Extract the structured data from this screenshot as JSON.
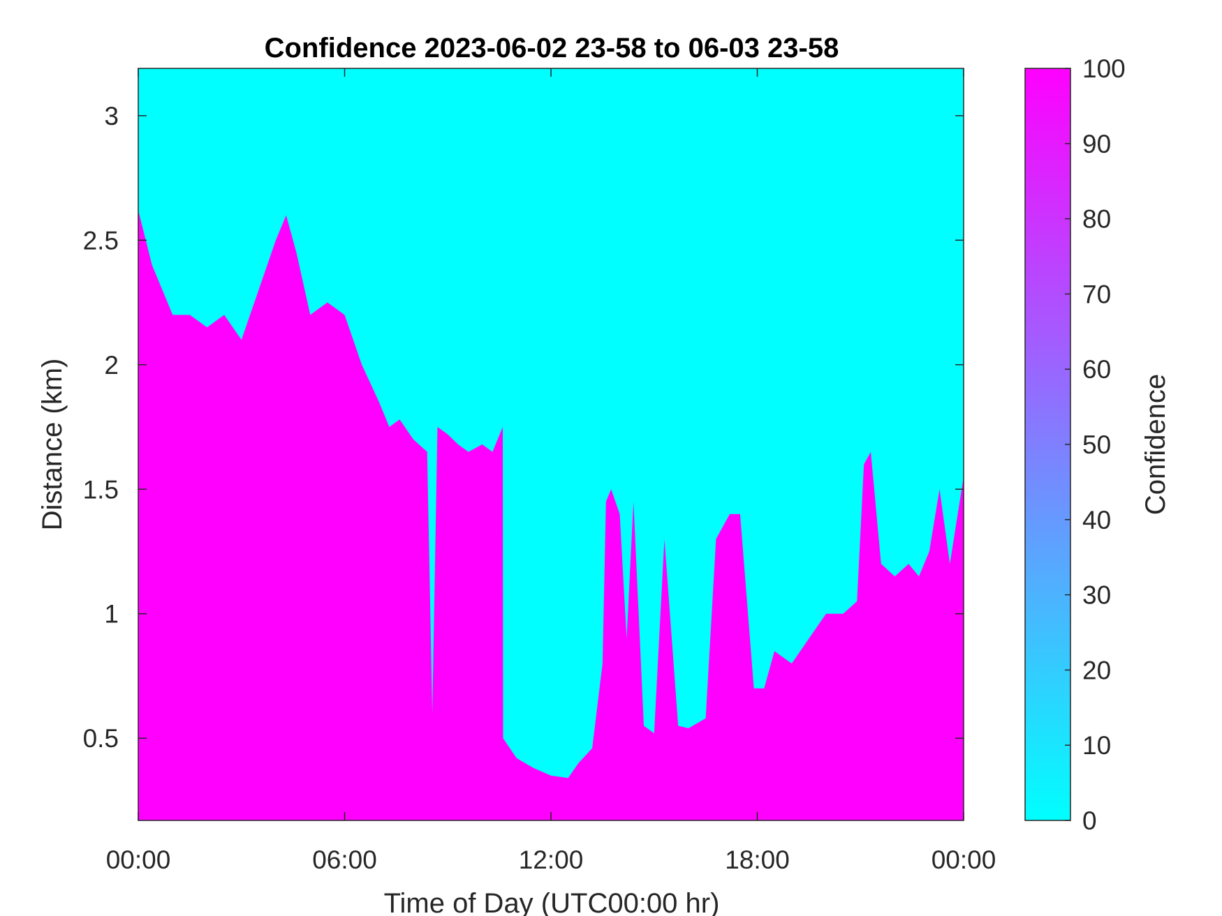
{
  "chart_data": {
    "type": "heatmap",
    "title": "Confidence 2023-06-02 23-58 to 06-03 23-58",
    "xlabel": "Time of Day (UTC00:00 hr)",
    "ylabel": "Distance (km)",
    "colorbar_label": "Confidence",
    "x_ticks": [
      "00:00",
      "06:00",
      "12:00",
      "18:00",
      "00:00"
    ],
    "x_tick_hours": [
      0,
      6,
      12,
      18,
      24
    ],
    "xlim_hours": [
      0,
      24
    ],
    "y_ticks": [
      "0.5",
      "1",
      "1.5",
      "2",
      "2.5",
      "3"
    ],
    "y_tick_values": [
      0.5,
      1,
      1.5,
      2,
      2.5,
      3
    ],
    "ylim": [
      0.17,
      3.19
    ],
    "colorbar_ticks": [
      "0",
      "10",
      "20",
      "30",
      "40",
      "50",
      "60",
      "70",
      "80",
      "90",
      "100"
    ],
    "colorbar_tick_values": [
      0,
      10,
      20,
      30,
      40,
      50,
      60,
      70,
      80,
      90,
      100
    ],
    "clim": [
      0,
      100
    ],
    "colormap": {
      "low": "#00ffff",
      "high": "#ff00ff"
    },
    "high_confidence_boundary": {
      "description_units": "hours, km",
      "hours": [
        0,
        0.4,
        1.0,
        1.5,
        2.0,
        2.5,
        3.0,
        3.5,
        4.0,
        4.3,
        4.6,
        5.0,
        5.5,
        6.0,
        6.5,
        7.0,
        7.3,
        7.6,
        8.0,
        8.4,
        8.55,
        8.7,
        9.0,
        9.3,
        9.6,
        10.0,
        10.3,
        10.6,
        10.61,
        11.0,
        11.5,
        12.0,
        12.5,
        12.8,
        13.2,
        13.5,
        13.6,
        13.75,
        14.0,
        14.2,
        14.4,
        14.7,
        15.0,
        15.3,
        15.7,
        16.0,
        16.5,
        16.8,
        17.2,
        17.5,
        17.9,
        18.2,
        18.5,
        19.0,
        19.5,
        20.0,
        20.5,
        20.9,
        21.1,
        21.3,
        21.6,
        22.0,
        22.4,
        22.7,
        23.0,
        23.3,
        23.6,
        24.0
      ],
      "km": [
        2.62,
        2.4,
        2.2,
        2.2,
        2.15,
        2.2,
        2.1,
        2.3,
        2.5,
        2.6,
        2.45,
        2.2,
        2.25,
        2.2,
        2.0,
        1.85,
        1.75,
        1.78,
        1.7,
        1.65,
        0.6,
        1.75,
        1.72,
        1.68,
        1.65,
        1.68,
        1.65,
        1.75,
        0.5,
        0.42,
        0.38,
        0.35,
        0.34,
        0.4,
        0.46,
        0.8,
        1.45,
        1.5,
        1.4,
        0.9,
        1.45,
        0.55,
        0.52,
        1.3,
        0.55,
        0.54,
        0.58,
        1.3,
        1.4,
        1.4,
        0.7,
        0.7,
        0.85,
        0.8,
        0.9,
        1.0,
        1.0,
        1.05,
        1.6,
        1.65,
        1.2,
        1.15,
        1.2,
        1.15,
        1.25,
        1.5,
        1.2,
        1.55
      ]
    }
  }
}
